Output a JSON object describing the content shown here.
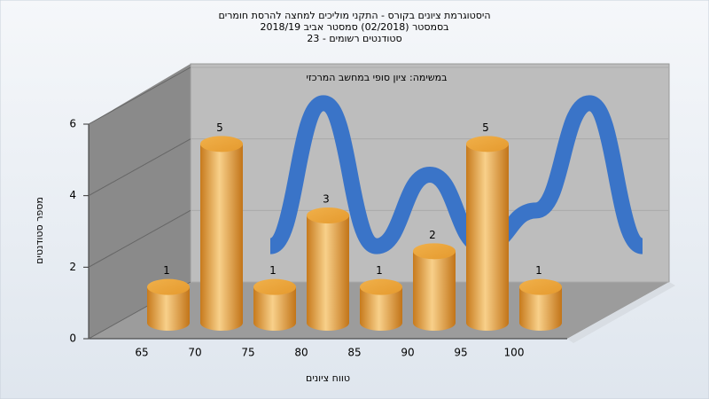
{
  "chart_data": {
    "type": "bar3d",
    "title": [
      "היסטוגרמת ציונים בקורס - התקני מוליכים למחצה להרסת חומרים",
      "בסמסטר  (02/2018)  סמסטר אביב 2018/19",
      "סטודנטים רשומים - 23"
    ],
    "subtitle": "במשימה: ציון סופי במחשב המרכזי",
    "y_label": "מספר סטודנטים",
    "x_label": "טווח ציונים",
    "categories": [
      "65",
      "70",
      "75",
      "80",
      "85",
      "90",
      "95",
      "100"
    ],
    "values": [
      1,
      5,
      1,
      3,
      1,
      2,
      5,
      1
    ],
    "color": "#e8a23c",
    "line_color": "#3a74c8",
    "ylim": [
      0,
      6
    ],
    "yticks": [
      0,
      2,
      4,
      6
    ],
    "grid": true
  }
}
